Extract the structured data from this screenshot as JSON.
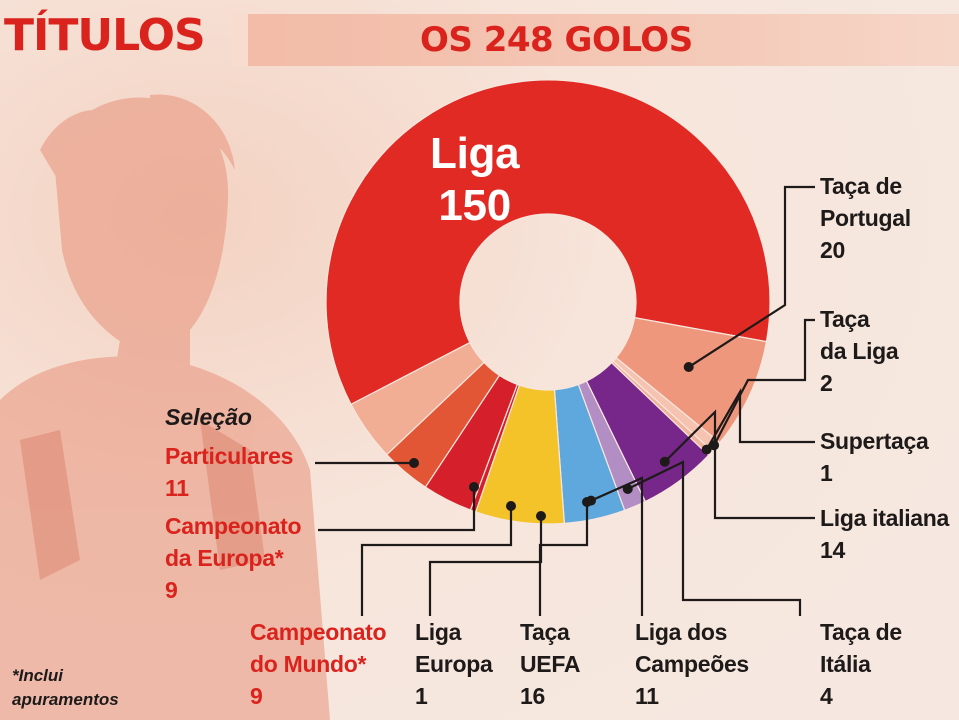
{
  "header": {
    "left_title": "TÍTULOS",
    "right_title": "OS 248 GOLOS"
  },
  "group_label": "Seleção",
  "footnote": {
    "line1": "*Inclui",
    "line2": "apuramentos"
  },
  "colors": {
    "red": "#e22a25",
    "salmon": "#ef977c",
    "pale": "#f5c3b0",
    "peach": "#f2b29c",
    "purple": "#77278a",
    "lilac": "#b38ec4",
    "blue": "#5ea8dd",
    "yellow": "#f4c32a",
    "crimson": "#d51f2a",
    "orange_red": "#e25535",
    "light_salmon": "#f2ad95"
  },
  "chart_data": {
    "type": "pie",
    "title": "OS 248 GOLOS",
    "total": 248,
    "slices": [
      {
        "key": "liga",
        "label_lines": [
          "Liga"
        ],
        "value": 150,
        "color": "#e22a25"
      },
      {
        "key": "taca_portugal",
        "label_lines": [
          "Taça de",
          "Portugal"
        ],
        "value": 20,
        "color": "#ef977c"
      },
      {
        "key": "taca_liga",
        "label_lines": [
          "Taça",
          "da Liga"
        ],
        "value": 2,
        "color": "#f5c3b0"
      },
      {
        "key": "supertaca",
        "label_lines": [
          "Supertaça"
        ],
        "value": 1,
        "color": "#f2b29c"
      },
      {
        "key": "liga_italiana",
        "label_lines": [
          "Liga italiana"
        ],
        "value": 14,
        "color": "#77278a"
      },
      {
        "key": "taca_italia",
        "label_lines": [
          "Taça de",
          "Itália"
        ],
        "value": 4,
        "color": "#b38ec4"
      },
      {
        "key": "liga_campeoes",
        "label_lines": [
          "Liga dos",
          "Campeões"
        ],
        "value": 11,
        "color": "#5ea8dd"
      },
      {
        "key": "taca_uefa",
        "label_lines": [
          "Taça",
          "UEFA"
        ],
        "value": 16,
        "color": "#f4c32a"
      },
      {
        "key": "liga_europa",
        "label_lines": [
          "Liga",
          "Europa"
        ],
        "value": 1,
        "color": "#d51f2a"
      },
      {
        "key": "campeonato_mundo",
        "label_lines": [
          "Campeonato",
          "do Mundo*"
        ],
        "value": 9,
        "color": "#d51f2a"
      },
      {
        "key": "campeonato_europa",
        "label_lines": [
          "Campeonato",
          "da Europa*"
        ],
        "value": 9,
        "color": "#e25535"
      },
      {
        "key": "particulares",
        "label_lines": [
          "Particulares"
        ],
        "value": 11,
        "color": "#f2ad95"
      }
    ]
  }
}
